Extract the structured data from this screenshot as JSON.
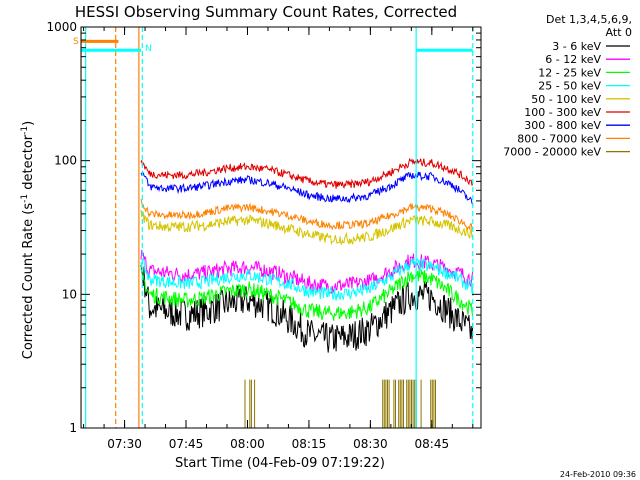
{
  "chart_data": {
    "type": "line",
    "title": "HESSI Observing Summary Count Rates, Corrected",
    "xlabel": "Start Time (04-Feb-09 07:19:22)",
    "ylabel_prefix": "Corrected Count Rate (s",
    "ylabel_mid": " detector",
    "ylabel_suffix": ")",
    "ylabel_exp": "-1",
    "y_scale": "log",
    "ylim": [
      1,
      1000
    ],
    "xlim": [
      "07:19:22",
      "08:57:00"
    ],
    "x_ticks": [
      "07:30",
      "07:45",
      "08:00",
      "08:15",
      "08:30",
      "08:45"
    ],
    "y_ticks": [
      "1",
      "10",
      "100",
      "1000"
    ],
    "grid": false,
    "legend_position": "right",
    "legend_header": [
      "Det 1,3,4,5,6,9,",
      "Att 0"
    ],
    "legend": [
      {
        "label": "3 - 6 keV",
        "color": "#000000"
      },
      {
        "label": "6 - 12 keV",
        "color": "#ff00ff"
      },
      {
        "label": "12 - 25 keV",
        "color": "#00ff00"
      },
      {
        "label": "25 - 50 keV",
        "color": "#00ffff"
      },
      {
        "label": "50 - 100 keV",
        "color": "#d4c400"
      },
      {
        "label": "100 - 300 keV",
        "color": "#e00000"
      },
      {
        "label": "300 - 800 keV",
        "color": "#0000ff"
      },
      {
        "label": "800 - 7000 keV",
        "color": "#ff8000"
      },
      {
        "label": "7000 - 20000 keV",
        "color": "#8b7500"
      }
    ],
    "times": [
      "07:34",
      "07:36",
      "07:40",
      "07:45",
      "07:50",
      "07:55",
      "08:00",
      "08:05",
      "08:10",
      "08:15",
      "08:20",
      "08:25",
      "08:30",
      "08:35",
      "08:40",
      "08:45",
      "08:50",
      "08:55"
    ],
    "series": [
      {
        "name": "3 - 6 keV",
        "color": "#000000",
        "noise": 0.12,
        "values": [
          16,
          8,
          7.5,
          7,
          7.5,
          8.5,
          9,
          8.2,
          6.5,
          5,
          4.6,
          4.8,
          5.5,
          7.5,
          10,
          9.5,
          7,
          5
        ]
      },
      {
        "name": "6 - 12 keV",
        "color": "#ff00ff",
        "noise": 0.06,
        "values": [
          20,
          15,
          14.5,
          14,
          14.5,
          15.5,
          16,
          15,
          13.5,
          12,
          11.5,
          11.8,
          12.5,
          15,
          18,
          17,
          15,
          13
        ]
      },
      {
        "name": "12 - 25 keV",
        "color": "#00ff00",
        "noise": 0.06,
        "values": [
          14,
          10,
          9.5,
          9,
          9.5,
          10.5,
          11,
          10,
          8.8,
          7.5,
          7.2,
          7.3,
          8,
          10.5,
          14,
          13,
          10,
          7.5
        ]
      },
      {
        "name": "25 - 50 keV",
        "color": "#00ffff",
        "noise": 0.05,
        "values": [
          18,
          13,
          12.5,
          12,
          12.5,
          13.5,
          14,
          13,
          12,
          10.5,
          10,
          10.2,
          11,
          13.5,
          17,
          16,
          14,
          11
        ]
      },
      {
        "name": "50 - 100 keV",
        "color": "#d4c400",
        "noise": 0.04,
        "values": [
          40,
          33,
          32,
          32,
          33,
          35,
          36,
          34,
          31,
          28,
          26,
          26,
          27,
          31,
          36,
          35,
          32,
          28
        ]
      },
      {
        "name": "100 - 300 keV",
        "color": "#e00000",
        "noise": 0.03,
        "values": [
          100,
          80,
          78,
          78,
          82,
          88,
          90,
          86,
          78,
          70,
          66,
          66,
          70,
          82,
          98,
          96,
          85,
          68
        ]
      },
      {
        "name": "300 - 800 keV",
        "color": "#0000ff",
        "noise": 0.03,
        "values": [
          85,
          64,
          62,
          62,
          65,
          70,
          72,
          68,
          62,
          55,
          52,
          52,
          55,
          65,
          78,
          76,
          66,
          48
        ]
      },
      {
        "name": "800 - 7000 keV",
        "color": "#ff8000",
        "noise": 0.03,
        "values": [
          50,
          40,
          39,
          39,
          41,
          44,
          45,
          42,
          39,
          35,
          33,
          33,
          34,
          39,
          45,
          44,
          38,
          31
        ]
      }
    ],
    "spikes_7000_20000": {
      "color": "#8b7500",
      "ranges": [
        [
          "07:59",
          "08:02"
        ],
        [
          "08:33",
          "08:47"
        ]
      ],
      "level": 2.3
    },
    "markers": [
      {
        "label": "S",
        "color": "#ff8000"
      },
      {
        "label": "N",
        "color": "#00ffff"
      }
    ],
    "vertical_lines": [
      {
        "time": "07:19:22",
        "color": "#ff8000",
        "style": "solid"
      },
      {
        "time": "07:33:30",
        "color": "#ff8000",
        "style": "solid"
      },
      {
        "time": "07:27:50",
        "color": "#ff8000",
        "style": "dashed"
      },
      {
        "time": "07:20:30",
        "color": "#00ffff",
        "style": "solid"
      },
      {
        "time": "07:34:20",
        "color": "#00ffff",
        "style": "dashed"
      },
      {
        "time": "08:41:10",
        "color": "#00ffff",
        "style": "solid"
      },
      {
        "time": "08:55:00",
        "color": "#00ffff",
        "style": "dashed"
      }
    ],
    "horizontal_bars": [
      {
        "from": "07:19:22",
        "to": "07:28:30",
        "value": 780,
        "color": "#ff8000"
      },
      {
        "from": "07:19:22",
        "to": "07:34:00",
        "value": 670,
        "color": "#00ffff"
      },
      {
        "from": "08:41:10",
        "to": "08:55:00",
        "value": 670,
        "color": "#00ffff"
      }
    ]
  },
  "timestamp": "24-Feb-2010 09:36"
}
